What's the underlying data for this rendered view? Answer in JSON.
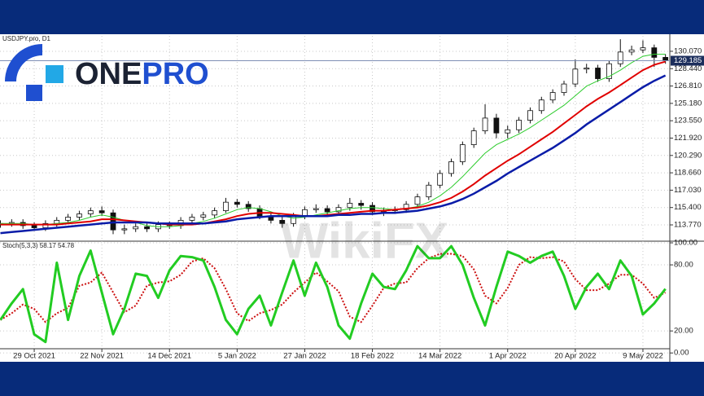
{
  "logo": [
    "ONE",
    "PRO"
  ],
  "watermark": "WikiFX",
  "chart_data": [
    {
      "type": "candlestick",
      "title": "USDJPY.pro, D1",
      "categories": [
        null,
        null,
        null,
        "29 Oct 2021",
        null,
        null,
        null,
        null,
        null,
        "22 Nov 2021",
        null,
        null,
        null,
        null,
        null,
        "14 Dec 2021",
        null,
        null,
        null,
        null,
        null,
        "5 Jan 2022",
        null,
        null,
        null,
        null,
        null,
        "27 Jan 2022",
        null,
        null,
        null,
        null,
        null,
        "18 Feb 2022",
        null,
        null,
        null,
        null,
        null,
        "14 Mar 2022",
        null,
        null,
        null,
        null,
        null,
        "1 Apr 2022",
        null,
        null,
        null,
        null,
        null,
        "20 Apr 2022",
        null,
        null,
        null,
        null,
        null,
        "9 May 2022",
        null,
        null
      ],
      "open": [
        113.8,
        113.9,
        114.0,
        113.7,
        113.5,
        113.9,
        114.2,
        114.5,
        114.8,
        115.1,
        114.9,
        113.3,
        113.4,
        113.6,
        113.4,
        113.8,
        113.7,
        114.2,
        114.5,
        114.7,
        115.1,
        115.9,
        115.7,
        115.3,
        114.6,
        114.2,
        113.9,
        114.6,
        115.2,
        115.3,
        115.0,
        115.4,
        115.8,
        115.6,
        115.0,
        115.1,
        115.2,
        115.7,
        116.4,
        117.5,
        118.6,
        119.7,
        121.3,
        122.6,
        123.8,
        122.4,
        122.7,
        123.6,
        124.5,
        125.5,
        126.2,
        127.0,
        128.4,
        128.5,
        127.5,
        128.9,
        130.0,
        130.2,
        130.4,
        129.5
      ],
      "high": [
        114.2,
        114.3,
        114.3,
        114.0,
        114.2,
        114.5,
        114.8,
        115.1,
        115.4,
        115.5,
        115.2,
        113.8,
        113.9,
        113.9,
        114.1,
        114.1,
        114.5,
        114.8,
        115.0,
        115.4,
        116.3,
        116.2,
        116.0,
        115.6,
        114.9,
        114.5,
        114.9,
        115.5,
        115.7,
        115.6,
        115.7,
        116.3,
        116.1,
        115.9,
        115.4,
        115.5,
        116.0,
        116.7,
        117.8,
        118.9,
        120.0,
        121.6,
        122.9,
        125.1,
        124.2,
        123.1,
        123.9,
        124.8,
        125.8,
        126.5,
        127.3,
        129.3,
        128.9,
        128.8,
        129.2,
        131.2,
        130.6,
        131.1,
        130.7,
        129.8
      ],
      "low": [
        113.5,
        113.6,
        113.4,
        113.2,
        113.2,
        113.6,
        113.9,
        114.2,
        114.5,
        114.6,
        112.9,
        112.9,
        113.1,
        113.1,
        113.1,
        113.4,
        113.4,
        113.9,
        114.2,
        114.4,
        114.9,
        115.4,
        115.0,
        114.3,
        113.9,
        113.5,
        113.6,
        114.3,
        114.9,
        114.7,
        114.7,
        115.1,
        115.2,
        114.7,
        114.6,
        114.8,
        114.9,
        115.4,
        116.1,
        117.2,
        118.3,
        119.4,
        121.0,
        122.3,
        121.9,
        121.9,
        122.4,
        123.3,
        124.2,
        125.2,
        125.9,
        126.7,
        128.0,
        127.2,
        127.2,
        128.6,
        129.7,
        129.9,
        128.6,
        128.9
      ],
      "close": [
        113.9,
        114.0,
        113.7,
        113.5,
        113.9,
        114.2,
        114.5,
        114.8,
        115.1,
        114.9,
        113.3,
        113.4,
        113.6,
        113.4,
        113.8,
        113.7,
        114.2,
        114.5,
        114.7,
        115.1,
        115.9,
        115.7,
        115.3,
        114.6,
        114.2,
        113.9,
        114.6,
        115.2,
        115.3,
        115.0,
        115.4,
        115.8,
        115.6,
        115.0,
        115.1,
        115.2,
        115.7,
        116.4,
        117.5,
        118.6,
        119.7,
        121.3,
        122.6,
        123.8,
        122.4,
        122.7,
        123.6,
        124.5,
        125.5,
        126.2,
        127.0,
        128.4,
        128.5,
        127.5,
        128.9,
        130.0,
        130.2,
        130.4,
        129.5,
        129.2
      ],
      "overlays": [
        {
          "color": "#2ecc2e",
          "width": 1,
          "values": [
            113.9,
            113.9,
            113.9,
            113.8,
            113.8,
            113.9,
            114.0,
            114.2,
            114.5,
            114.7,
            114.5,
            114.2,
            114.0,
            113.7,
            113.6,
            113.6,
            113.7,
            113.9,
            114.1,
            114.4,
            114.8,
            115.2,
            115.4,
            115.3,
            115.0,
            114.6,
            114.4,
            114.5,
            114.7,
            114.9,
            115.1,
            115.3,
            115.4,
            115.4,
            115.3,
            115.2,
            115.3,
            115.5,
            115.9,
            116.5,
            117.3,
            118.3,
            119.4,
            120.5,
            121.3,
            121.8,
            122.3,
            122.9,
            123.6,
            124.3,
            125.0,
            125.9,
            126.8,
            127.3,
            127.7,
            128.3,
            129.0,
            129.6,
            129.8,
            129.8
          ]
        },
        {
          "color": "#e00000",
          "width": 2,
          "values": [
            113.8,
            113.8,
            113.8,
            113.8,
            113.8,
            113.8,
            113.9,
            114.0,
            114.1,
            114.3,
            114.3,
            114.2,
            114.1,
            114.0,
            113.9,
            113.8,
            113.8,
            113.8,
            113.9,
            114.1,
            114.3,
            114.6,
            114.8,
            114.9,
            114.9,
            114.8,
            114.7,
            114.6,
            114.6,
            114.7,
            114.8,
            114.9,
            115.0,
            115.1,
            115.1,
            115.2,
            115.3,
            115.4,
            115.6,
            115.9,
            116.3,
            116.9,
            117.6,
            118.4,
            119.1,
            119.8,
            120.4,
            121.1,
            121.8,
            122.5,
            123.3,
            124.1,
            124.9,
            125.6,
            126.2,
            126.9,
            127.6,
            128.3,
            128.8,
            129.1
          ]
        },
        {
          "color": "#0a1ca8",
          "width": 2.5,
          "values": [
            113.0,
            113.1,
            113.2,
            113.3,
            113.4,
            113.5,
            113.6,
            113.7,
            113.8,
            113.9,
            114.0,
            114.0,
            114.0,
            114.0,
            113.9,
            113.9,
            113.9,
            113.9,
            113.9,
            114.0,
            114.1,
            114.3,
            114.4,
            114.5,
            114.6,
            114.6,
            114.6,
            114.6,
            114.6,
            114.6,
            114.7,
            114.7,
            114.8,
            114.8,
            114.9,
            114.9,
            115.0,
            115.1,
            115.3,
            115.5,
            115.8,
            116.2,
            116.7,
            117.3,
            117.9,
            118.6,
            119.2,
            119.8,
            120.4,
            121.0,
            121.7,
            122.4,
            123.2,
            123.9,
            124.6,
            125.3,
            126.0,
            126.7,
            127.3,
            127.8
          ]
        }
      ],
      "last_price": 129.185,
      "ylim": [
        112.24,
        131.52
      ],
      "yticks": [
        {
          "value": 113.77,
          "label": "113.770"
        },
        {
          "value": 115.4,
          "label": "115.400"
        },
        {
          "value": 117.03,
          "label": "117.030"
        },
        {
          "value": 118.66,
          "label": "118.660"
        },
        {
          "value": 120.29,
          "label": "120.290"
        },
        {
          "value": 121.92,
          "label": "121.920"
        },
        {
          "value": 123.55,
          "label": "123.550"
        },
        {
          "value": 125.18,
          "label": "125.180"
        },
        {
          "value": 126.81,
          "label": "126.810"
        },
        {
          "value": 128.44,
          "label": "128.440"
        },
        {
          "value": 130.07,
          "label": "130.070"
        }
      ],
      "grid": true
    },
    {
      "type": "line",
      "title": "Stoch(5,3,3) 58.17 54.78",
      "series": [
        {
          "color": "#22cc22",
          "width": 3,
          "dash": false,
          "values": [
            30,
            45,
            58,
            17,
            10,
            82,
            30,
            70,
            93,
            55,
            17,
            40,
            72,
            70,
            50,
            75,
            88,
            87,
            84,
            60,
            30,
            17,
            40,
            52,
            25,
            55,
            84,
            52,
            82,
            60,
            25,
            13,
            45,
            72,
            60,
            58,
            75,
            97,
            86,
            86,
            97,
            80,
            50,
            25,
            60,
            92,
            88,
            82,
            88,
            92,
            70,
            40,
            60,
            72,
            58,
            84,
            70,
            35,
            45,
            58.17
          ]
        },
        {
          "color": "#cc1010",
          "width": 2,
          "dash": true,
          "values": [
            30,
            36,
            44,
            40,
            28,
            36,
            41,
            61,
            64,
            73,
            55,
            37,
            43,
            61,
            64,
            65,
            71,
            83,
            86,
            77,
            58,
            36,
            29,
            36,
            39,
            44,
            55,
            64,
            73,
            65,
            56,
            33,
            28,
            43,
            59,
            63,
            64,
            77,
            86,
            90,
            90,
            88,
            76,
            52,
            45,
            59,
            80,
            87,
            86,
            87,
            83,
            67,
            57,
            57,
            63,
            71,
            71,
            63,
            50,
            54.78
          ]
        }
      ],
      "ylim": [
        -8,
        101.5
      ],
      "yticks": [
        {
          "value": 0,
          "label": "0.00"
        },
        {
          "value": 20,
          "label": "20.00"
        },
        {
          "value": 80,
          "label": "80.00"
        },
        {
          "value": 100,
          "label": "100.00"
        }
      ],
      "grid": true
    }
  ]
}
